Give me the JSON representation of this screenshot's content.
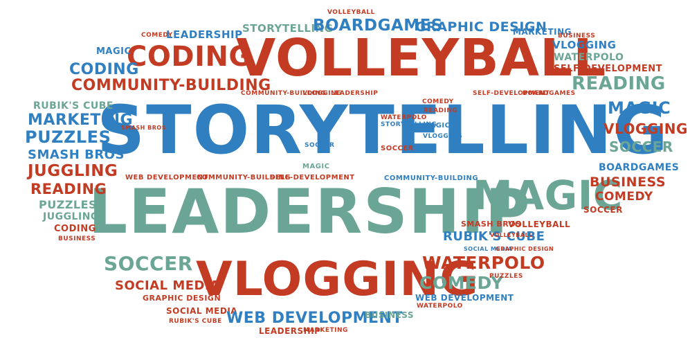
{
  "palette": {
    "blue": "#2f7fc1",
    "red": "#c23b22",
    "green": "#6aa595"
  },
  "words": [
    {
      "text": "STORYTELLING",
      "color": "blue"
    },
    {
      "text": "LEADERSHIP",
      "color": "green"
    },
    {
      "text": "VOLLEYBALL",
      "color": "red"
    },
    {
      "text": "VLOGGING",
      "color": "red"
    },
    {
      "text": "MAGIC",
      "color": "green"
    },
    {
      "text": "CODING",
      "color": "red"
    },
    {
      "text": "COMMUNITY-BUILDING",
      "color": "red"
    },
    {
      "text": "CODING",
      "color": "blue"
    },
    {
      "text": "MAGIC",
      "color": "blue"
    },
    {
      "text": "COMEDY",
      "color": "red"
    },
    {
      "text": "LEADERSHIP",
      "color": "blue"
    },
    {
      "text": "STORYTELLING",
      "color": "green"
    },
    {
      "text": "BOARDGAMES",
      "color": "blue"
    },
    {
      "text": "VOLLEYBALL",
      "color": "red"
    },
    {
      "text": "GRAPHIC DESIGN",
      "color": "blue"
    },
    {
      "text": "MARKETING",
      "color": "blue"
    },
    {
      "text": "BUSINESS",
      "color": "red"
    },
    {
      "text": "VLOGGING",
      "color": "blue"
    },
    {
      "text": "WATERPOLO",
      "color": "green"
    },
    {
      "text": "SELF-DEVELOPMENT",
      "color": "red"
    },
    {
      "text": "READING",
      "color": "green"
    },
    {
      "text": "MAGIC",
      "color": "blue"
    },
    {
      "text": "VLOGGING",
      "color": "red"
    },
    {
      "text": "SOCCER",
      "color": "green"
    },
    {
      "text": "BOARDGAMES",
      "color": "blue"
    },
    {
      "text": "BUSINESS",
      "color": "red"
    },
    {
      "text": "COMEDY",
      "color": "red"
    },
    {
      "text": "SOCCER",
      "color": "red"
    },
    {
      "text": "RUBIK'S CUBE",
      "color": "green"
    },
    {
      "text": "MARKETING",
      "color": "blue"
    },
    {
      "text": "PUZZLES",
      "color": "blue"
    },
    {
      "text": "SMASH BROS",
      "color": "blue"
    },
    {
      "text": "JUGGLING",
      "color": "red"
    },
    {
      "text": "READING",
      "color": "red"
    },
    {
      "text": "PUZZLES",
      "color": "green"
    },
    {
      "text": "JUGGLING",
      "color": "green"
    },
    {
      "text": "CODING",
      "color": "red"
    },
    {
      "text": "BUSINESS",
      "color": "red"
    },
    {
      "text": "SOCCER",
      "color": "green"
    },
    {
      "text": "SOCIAL MEDIA",
      "color": "red"
    },
    {
      "text": "GRAPHIC DESIGN",
      "color": "red"
    },
    {
      "text": "SOCIAL MEDIA",
      "color": "red"
    },
    {
      "text": "RUBIK'S CUBE",
      "color": "red"
    },
    {
      "text": "WEB DEVELOPMENT",
      "color": "blue"
    },
    {
      "text": "LEADERSHIP",
      "color": "red"
    },
    {
      "text": "MARKETING",
      "color": "red"
    },
    {
      "text": "BUSINESS",
      "color": "green"
    },
    {
      "text": "COMEDY",
      "color": "green"
    },
    {
      "text": "WEB DEVELOPMENT",
      "color": "blue"
    },
    {
      "text": "WATERPOLO",
      "color": "red"
    },
    {
      "text": "WATERPOLO",
      "color": "red"
    },
    {
      "text": "PUZZLES",
      "color": "red"
    },
    {
      "text": "RUBIK'S CUBE",
      "color": "blue"
    },
    {
      "text": "SMASH BROS",
      "color": "red"
    },
    {
      "text": "VOLLEYBALL",
      "color": "red"
    },
    {
      "text": "WEB DEVELOPMENT",
      "color": "red"
    },
    {
      "text": "COMMUNITY-BUILDING",
      "color": "red"
    },
    {
      "text": "SELF-DEVELOPMENT",
      "color": "red"
    },
    {
      "text": "COMMUNITY-BUILDING",
      "color": "blue"
    },
    {
      "text": "MAGIC",
      "color": "green"
    },
    {
      "text": "SOCCER",
      "color": "blue"
    },
    {
      "text": "SOCCER",
      "color": "red"
    },
    {
      "text": "COMEDY",
      "color": "red"
    },
    {
      "text": "READING",
      "color": "red"
    },
    {
      "text": "MAGIC",
      "color": "blue"
    },
    {
      "text": "VLOGGING",
      "color": "blue"
    },
    {
      "text": "WATERPOLO",
      "color": "red"
    },
    {
      "text": "STORYTELLING",
      "color": "blue"
    },
    {
      "text": "SMASH BROS",
      "color": "red"
    },
    {
      "text": "COMMUNITY-BUILDING",
      "color": "red"
    },
    {
      "text": "VLOGGING",
      "color": "red"
    },
    {
      "text": "LEADERSHIP",
      "color": "red"
    },
    {
      "text": "SELF-DEVELOPMENT",
      "color": "red"
    },
    {
      "text": "BOARDGAMES",
      "color": "red"
    },
    {
      "text": "VOLLEYBALL",
      "color": "red"
    },
    {
      "text": "SOCIAL MEDIA",
      "color": "blue"
    },
    {
      "text": "GRAPHIC DESIGN",
      "color": "red"
    }
  ]
}
